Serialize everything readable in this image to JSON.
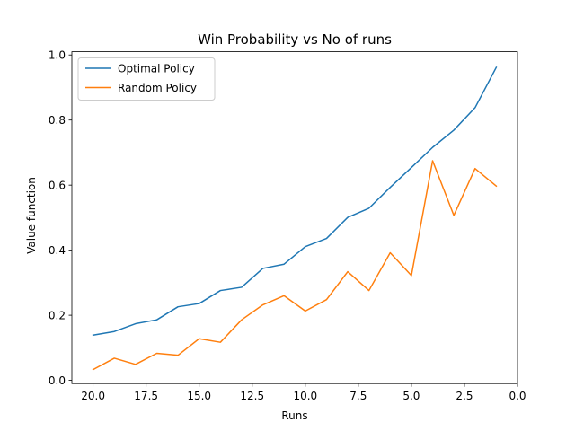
{
  "chart_data": {
    "type": "line",
    "title": "Win Probability vs No of runs",
    "xlabel": "Runs",
    "ylabel": "Value function",
    "xlim": [
      21,
      0
    ],
    "ylim": [
      -0.01,
      1.01
    ],
    "x_ticks": [
      20.0,
      17.5,
      15.0,
      12.5,
      10.0,
      7.5,
      5.0,
      2.5,
      0.0
    ],
    "x_tick_labels": [
      "20.0",
      "17.5",
      "15.0",
      "12.5",
      "10.0",
      "7.5",
      "5.0",
      "2.5",
      "0.0"
    ],
    "y_ticks": [
      0.0,
      0.2,
      0.4,
      0.6,
      0.8,
      1.0
    ],
    "y_tick_labels": [
      "0.0",
      "0.2",
      "0.4",
      "0.6",
      "0.8",
      "1.0"
    ],
    "grid": false,
    "legend_position": "top-left",
    "x": [
      20,
      19,
      18,
      17,
      16,
      15,
      14,
      13,
      12,
      11,
      10,
      9,
      8,
      7,
      6,
      5,
      4,
      3,
      2,
      1
    ],
    "series": [
      {
        "name": "Optimal Policy",
        "color": "#1f77b4",
        "values": [
          0.139,
          0.15,
          0.174,
          0.186,
          0.226,
          0.236,
          0.276,
          0.286,
          0.344,
          0.357,
          0.411,
          0.436,
          0.501,
          0.529,
          0.593,
          0.654,
          0.716,
          0.769,
          0.838,
          0.962
        ]
      },
      {
        "name": "Random Policy",
        "color": "#ff7f0e",
        "values": [
          0.033,
          0.068,
          0.049,
          0.083,
          0.077,
          0.128,
          0.117,
          0.186,
          0.232,
          0.26,
          0.213,
          0.248,
          0.334,
          0.276,
          0.392,
          0.322,
          0.675,
          0.507,
          0.651,
          0.597
        ]
      }
    ]
  }
}
